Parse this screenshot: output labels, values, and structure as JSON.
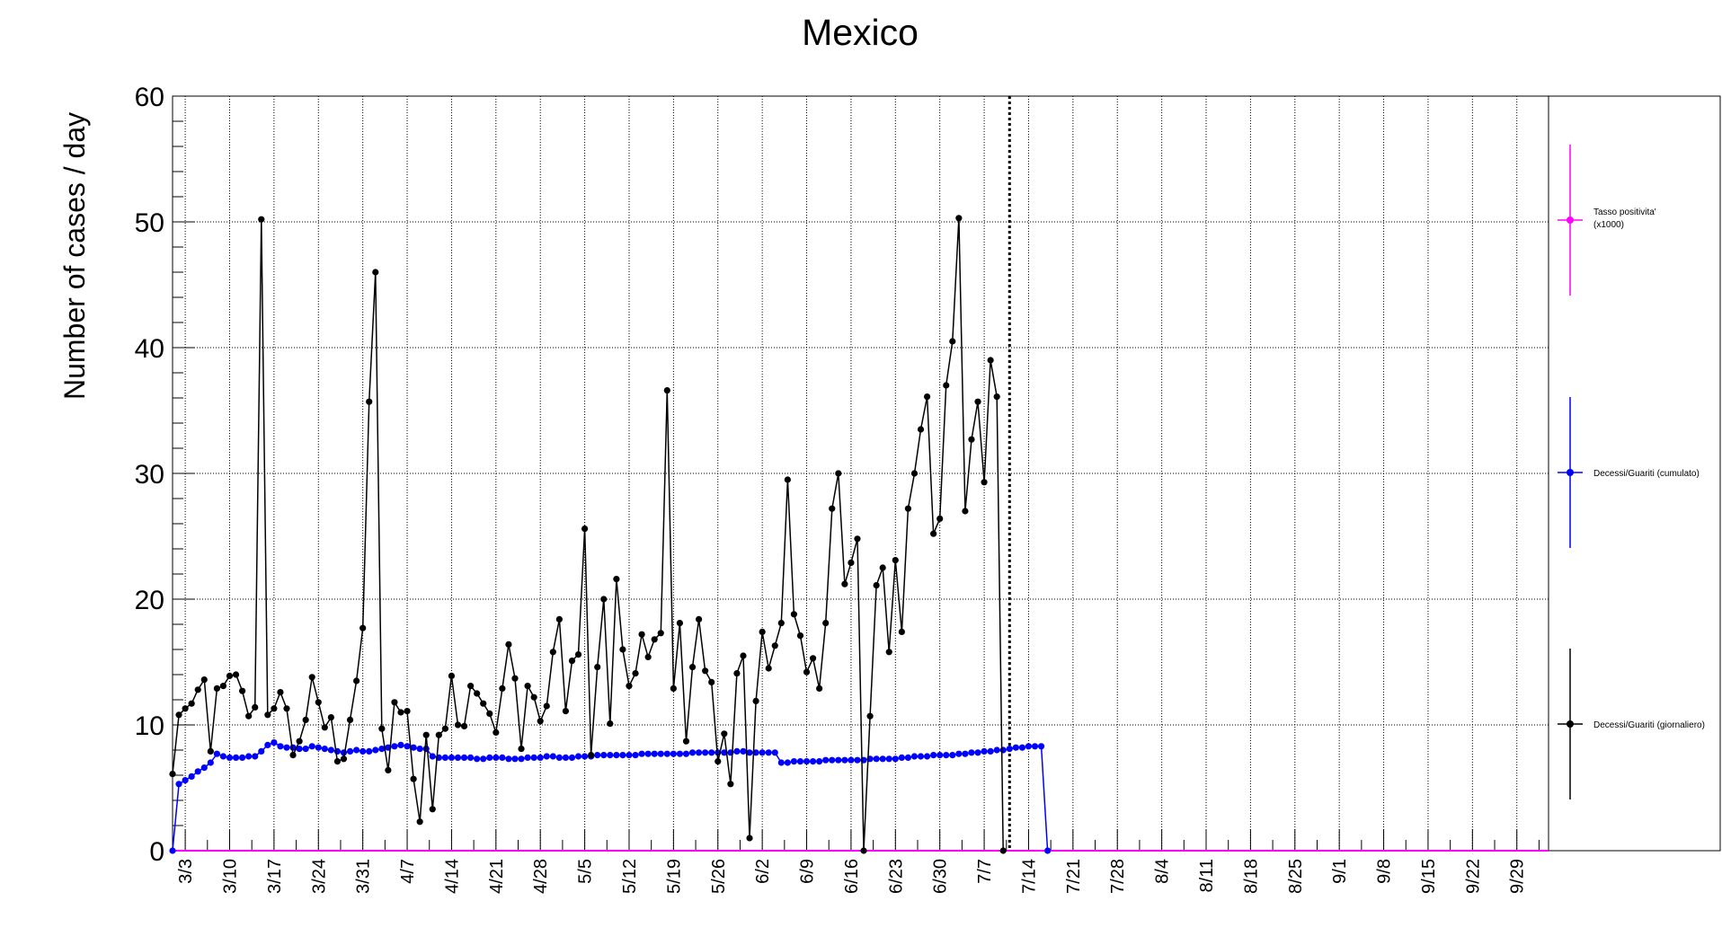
{
  "chart_data": {
    "type": "line",
    "title": "Mexico",
    "ylabel": "Number of cases / day",
    "xlabel": "",
    "ylim": [
      0,
      60
    ],
    "yticks": [
      0,
      10,
      20,
      30,
      40,
      50,
      60
    ],
    "xlim": [
      "3/1",
      "10/4"
    ],
    "xtick_labels": [
      "3/3",
      "3/10",
      "3/17",
      "3/24",
      "3/31",
      "4/7",
      "4/14",
      "4/21",
      "4/28",
      "5/5",
      "5/12",
      "5/19",
      "5/26",
      "6/2",
      "6/9",
      "6/16",
      "6/23",
      "6/30",
      "7/7",
      "7/14",
      "7/21",
      "7/28",
      "8/4",
      "8/11",
      "8/18",
      "8/25",
      "9/1",
      "9/8",
      "9/15",
      "9/22",
      "9/29"
    ],
    "grid": true,
    "marker_date": "7/11",
    "legend_placement": "right",
    "series": [
      {
        "name": "Tasso positivita' (x1000)",
        "color": "#ff00ff",
        "x": [
          "3/1",
          "10/4"
        ],
        "values": [
          0,
          0
        ]
      },
      {
        "name": "Decessi/Guariti (cumulato)",
        "color": "#0000ff",
        "start": "3/1",
        "values": [
          0,
          5.3,
          5.6,
          5.9,
          6.3,
          6.6,
          7.0,
          7.7,
          7.5,
          7.4,
          7.4,
          7.4,
          7.5,
          7.5,
          7.9,
          8.4,
          8.6,
          8.3,
          8.2,
          8.2,
          8.1,
          8.1,
          8.3,
          8.2,
          8.1,
          8.0,
          7.9,
          7.8,
          7.9,
          8.0,
          7.9,
          7.9,
          8.0,
          8.1,
          8.2,
          8.3,
          8.4,
          8.3,
          8.2,
          8.1,
          8.1,
          7.5,
          7.4,
          7.4,
          7.4,
          7.4,
          7.4,
          7.4,
          7.3,
          7.3,
          7.4,
          7.4,
          7.4,
          7.3,
          7.3,
          7.3,
          7.4,
          7.4,
          7.4,
          7.5,
          7.5,
          7.4,
          7.4,
          7.4,
          7.5,
          7.5,
          7.5,
          7.6,
          7.6,
          7.6,
          7.6,
          7.6,
          7.6,
          7.6,
          7.7,
          7.7,
          7.7,
          7.7,
          7.7,
          7.7,
          7.7,
          7.7,
          7.8,
          7.8,
          7.8,
          7.8,
          7.8,
          7.8,
          7.8,
          7.9,
          7.9,
          7.8,
          7.8,
          7.8,
          7.8,
          7.8,
          7.0,
          7.0,
          7.1,
          7.1,
          7.1,
          7.1,
          7.1,
          7.2,
          7.2,
          7.2,
          7.2,
          7.2,
          7.2,
          7.2,
          7.3,
          7.3,
          7.3,
          7.3,
          7.3,
          7.4,
          7.4,
          7.5,
          7.5,
          7.5,
          7.6,
          7.6,
          7.6,
          7.6,
          7.7,
          7.7,
          7.8,
          7.8,
          7.9,
          7.9,
          8.0,
          8.0,
          8.1,
          8.2,
          8.2,
          8.3,
          8.3,
          8.3,
          0
        ]
      },
      {
        "name": "Decessi/Guariti (giornaliero)",
        "color": "#000000",
        "start": "3/1",
        "values": [
          6.1,
          10.8,
          11.3,
          11.7,
          12.8,
          13.6,
          7.9,
          12.9,
          13.1,
          13.9,
          14.0,
          12.7,
          10.7,
          11.4,
          50.2,
          10.8,
          11.3,
          12.6,
          11.3,
          7.6,
          8.7,
          10.4,
          13.8,
          11.8,
          9.8,
          10.6,
          7.1,
          7.3,
          10.4,
          13.5,
          17.7,
          35.7,
          46.0,
          9.7,
          6.4,
          11.8,
          11.0,
          11.1,
          5.7,
          2.3,
          9.2,
          3.3,
          9.2,
          9.7,
          13.9,
          10.0,
          9.9,
          13.1,
          12.5,
          11.7,
          10.9,
          9.4,
          12.9,
          16.4,
          13.7,
          8.1,
          13.1,
          12.2,
          10.3,
          11.5,
          15.8,
          18.4,
          11.1,
          15.1,
          15.6,
          25.6,
          7.6,
          14.6,
          20.0,
          10.1,
          21.6,
          16.0,
          13.1,
          14.1,
          17.2,
          15.4,
          16.8,
          17.3,
          36.6,
          12.9,
          18.1,
          8.7,
          14.6,
          18.4,
          14.3,
          13.4,
          7.1,
          9.3,
          5.3,
          14.1,
          15.5,
          1.0,
          11.9,
          17.4,
          14.5,
          16.3,
          18.1,
          29.5,
          18.8,
          17.1,
          14.2,
          15.3,
          12.9,
          18.1,
          27.2,
          30.0,
          21.2,
          22.9,
          24.8,
          0,
          10.7,
          21.1,
          22.5,
          15.8,
          23.1,
          17.4,
          27.2,
          30.0,
          33.5,
          36.1,
          25.2,
          26.4,
          37.0,
          40.5,
          50.3,
          27.0,
          32.7,
          35.7,
          29.3,
          39.0,
          36.1,
          0
        ]
      }
    ]
  }
}
